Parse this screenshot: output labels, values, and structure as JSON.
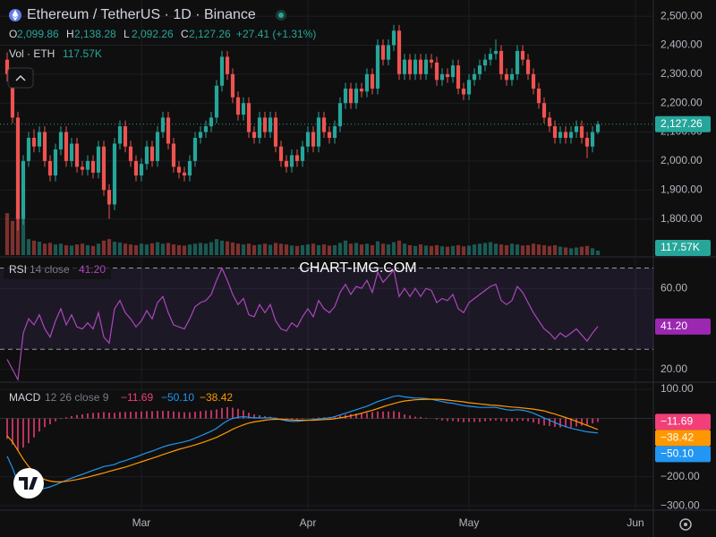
{
  "chart_data": {
    "type": "candlestick",
    "title": "Ethereum / TetherUS · 1D · Binance",
    "ohlc_header": [
      [
        "O",
        "2,099.86"
      ],
      [
        "H",
        "2,138.28"
      ],
      [
        "L",
        "2,092.26"
      ],
      [
        "C",
        "2,127.26"
      ]
    ],
    "change": "+27.41 (+1.31%)",
    "up_color": "#26a69a",
    "down_color": "#ef5350",
    "watermark": "CHART-IMG.COM",
    "xlim": [
      -1.33,
      120.33
    ],
    "xticks": [
      {
        "value": 25,
        "label": "Mar"
      },
      {
        "value": 56,
        "label": "Apr"
      },
      {
        "value": 86,
        "label": "May"
      },
      {
        "value": 117,
        "label": "Jun"
      }
    ],
    "ylim": [
      1669,
      2556
    ],
    "yticks": [
      {
        "value": 1800,
        "label": "1,800.00"
      },
      {
        "value": 1900,
        "label": "1,900.00"
      },
      {
        "value": 2000,
        "label": "2,000.00"
      },
      {
        "value": 2100,
        "label": "2,100.00"
      },
      {
        "value": 2200,
        "label": "2,200.00"
      },
      {
        "value": 2300,
        "label": "2,300.00"
      },
      {
        "value": 2400,
        "label": "2,400.00"
      },
      {
        "value": 2500,
        "label": "2,500.00"
      }
    ],
    "last_label": "2,127.26",
    "candles": [
      [
        2350,
        2375,
        2275,
        2300
      ],
      [
        2300,
        2320,
        2130,
        2150
      ],
      [
        2150,
        2170,
        1760,
        1800
      ],
      [
        1800,
        2020,
        1780,
        2000
      ],
      [
        2000,
        2100,
        1980,
        2080
      ],
      [
        2080,
        2110,
        2030,
        2050
      ],
      [
        2050,
        2120,
        2030,
        2100
      ],
      [
        2100,
        2120,
        1980,
        2000
      ],
      [
        2000,
        2020,
        1930,
        1950
      ],
      [
        1950,
        2060,
        1930,
        2040
      ],
      [
        2040,
        2120,
        2020,
        2100
      ],
      [
        2100,
        2120,
        1980,
        2000
      ],
      [
        2000,
        2080,
        1980,
        2060
      ],
      [
        2060,
        2080,
        1960,
        1980
      ],
      [
        1980,
        2000,
        1950,
        1970
      ],
      [
        1970,
        2020,
        1950,
        2000
      ],
      [
        2000,
        2020,
        1940,
        1960
      ],
      [
        1960,
        2070,
        1940,
        2050
      ],
      [
        2050,
        2070,
        1880,
        1900
      ],
      [
        1900,
        1920,
        1800,
        1850
      ],
      [
        1850,
        2080,
        1830,
        2060
      ],
      [
        2060,
        2140,
        2040,
        2120
      ],
      [
        2120,
        2140,
        2030,
        2050
      ],
      [
        2050,
        2070,
        1980,
        2000
      ],
      [
        2000,
        2020,
        1930,
        1950
      ],
      [
        1950,
        2010,
        1930,
        1990
      ],
      [
        1990,
        2070,
        1970,
        2050
      ],
      [
        2050,
        2070,
        1980,
        2000
      ],
      [
        2000,
        2120,
        1980,
        2100
      ],
      [
        2100,
        2170,
        2080,
        2150
      ],
      [
        2150,
        2170,
        2040,
        2060
      ],
      [
        2060,
        2080,
        1960,
        1980
      ],
      [
        1980,
        2000,
        1940,
        1960
      ],
      [
        1960,
        1980,
        1930,
        1950
      ],
      [
        1950,
        2020,
        1930,
        2000
      ],
      [
        2000,
        2100,
        1980,
        2080
      ],
      [
        2080,
        2120,
        2060,
        2100
      ],
      [
        2100,
        2140,
        2080,
        2120
      ],
      [
        2120,
        2170,
        2100,
        2150
      ],
      [
        2150,
        2280,
        2130,
        2260
      ],
      [
        2260,
        2380,
        2240,
        2360
      ],
      [
        2360,
        2380,
        2280,
        2300
      ],
      [
        2300,
        2320,
        2200,
        2220
      ],
      [
        2220,
        2240,
        2140,
        2160
      ],
      [
        2160,
        2220,
        2140,
        2200
      ],
      [
        2200,
        2220,
        2080,
        2100
      ],
      [
        2100,
        2120,
        2060,
        2080
      ],
      [
        2080,
        2170,
        2060,
        2150
      ],
      [
        2150,
        2170,
        2080,
        2100
      ],
      [
        2100,
        2170,
        2080,
        2150
      ],
      [
        2150,
        2170,
        2030,
        2050
      ],
      [
        2050,
        2070,
        1980,
        2000
      ],
      [
        2000,
        2020,
        1960,
        1980
      ],
      [
        1980,
        2040,
        1960,
        2020
      ],
      [
        2020,
        2040,
        1980,
        2000
      ],
      [
        2000,
        2070,
        1980,
        2050
      ],
      [
        2050,
        2120,
        2030,
        2100
      ],
      [
        2100,
        2120,
        2030,
        2050
      ],
      [
        2050,
        2170,
        2030,
        2150
      ],
      [
        2150,
        2170,
        2080,
        2100
      ],
      [
        2100,
        2120,
        2060,
        2080
      ],
      [
        2080,
        2140,
        2060,
        2120
      ],
      [
        2120,
        2220,
        2100,
        2200
      ],
      [
        2200,
        2270,
        2180,
        2250
      ],
      [
        2250,
        2270,
        2180,
        2200
      ],
      [
        2200,
        2270,
        2180,
        2250
      ],
      [
        2250,
        2270,
        2220,
        2240
      ],
      [
        2240,
        2320,
        2220,
        2300
      ],
      [
        2300,
        2320,
        2230,
        2250
      ],
      [
        2250,
        2420,
        2230,
        2400
      ],
      [
        2400,
        2420,
        2330,
        2350
      ],
      [
        2350,
        2420,
        2330,
        2400
      ],
      [
        2400,
        2470,
        2380,
        2450
      ],
      [
        2450,
        2470,
        2280,
        2300
      ],
      [
        2300,
        2370,
        2280,
        2350
      ],
      [
        2350,
        2370,
        2280,
        2300
      ],
      [
        2300,
        2370,
        2280,
        2350
      ],
      [
        2350,
        2370,
        2280,
        2300
      ],
      [
        2300,
        2370,
        2280,
        2350
      ],
      [
        2350,
        2370,
        2320,
        2340
      ],
      [
        2340,
        2360,
        2260,
        2280
      ],
      [
        2280,
        2320,
        2260,
        2300
      ],
      [
        2300,
        2320,
        2270,
        2290
      ],
      [
        2290,
        2350,
        2270,
        2330
      ],
      [
        2330,
        2350,
        2230,
        2250
      ],
      [
        2250,
        2270,
        2210,
        2230
      ],
      [
        2230,
        2300,
        2210,
        2280
      ],
      [
        2280,
        2320,
        2260,
        2300
      ],
      [
        2300,
        2350,
        2280,
        2330
      ],
      [
        2330,
        2370,
        2310,
        2350
      ],
      [
        2350,
        2390,
        2330,
        2370
      ],
      [
        2370,
        2420,
        2350,
        2380
      ],
      [
        2380,
        2400,
        2280,
        2300
      ],
      [
        2300,
        2320,
        2260,
        2280
      ],
      [
        2280,
        2320,
        2260,
        2300
      ],
      [
        2300,
        2400,
        2280,
        2380
      ],
      [
        2380,
        2400,
        2330,
        2350
      ],
      [
        2350,
        2370,
        2280,
        2300
      ],
      [
        2300,
        2320,
        2230,
        2250
      ],
      [
        2250,
        2270,
        2180,
        2200
      ],
      [
        2200,
        2220,
        2130,
        2150
      ],
      [
        2150,
        2170,
        2100,
        2120
      ],
      [
        2120,
        2140,
        2060,
        2080
      ],
      [
        2080,
        2120,
        2060,
        2100
      ],
      [
        2100,
        2120,
        2060,
        2080
      ],
      [
        2080,
        2120,
        2060,
        2100
      ],
      [
        2100,
        2140,
        2080,
        2120
      ],
      [
        2120,
        2140,
        2060,
        2080
      ],
      [
        2080,
        2100,
        2010,
        2050
      ],
      [
        2050,
        2120,
        2030,
        2099.86
      ],
      [
        2099.86,
        2138.28,
        2092.26,
        2127.26
      ]
    ],
    "volume": {
      "label": "Vol · ETH",
      "value_label": "117.57K",
      "ylim": [
        0,
        6700000
      ],
      "values": [
        1100000,
        900000,
        1130000,
        950000,
        420000,
        380000,
        350000,
        300000,
        320000,
        280000,
        300000,
        260000,
        250000,
        280000,
        300000,
        260000,
        240000,
        300000,
        380000,
        420000,
        350000,
        330000,
        300000,
        280000,
        260000,
        300000,
        280000,
        310000,
        340000,
        300000,
        320000,
        280000,
        260000,
        250000,
        280000,
        300000,
        320000,
        300000,
        340000,
        420000,
        380000,
        360000,
        330000,
        300000,
        280000,
        300000,
        260000,
        280000,
        300000,
        270000,
        320000,
        300000,
        280000,
        250000,
        240000,
        260000,
        280000,
        300000,
        260000,
        280000,
        250000,
        260000,
        320000,
        380000,
        300000,
        320000,
        280000,
        300000,
        260000,
        360000,
        300000,
        280000,
        340000,
        380000,
        300000,
        260000,
        240000,
        280000,
        250000,
        240000,
        260000,
        230000,
        220000,
        240000,
        260000,
        230000,
        250000,
        280000,
        300000,
        320000,
        340000,
        300000,
        280000,
        260000,
        300000,
        280000,
        250000,
        260000,
        300000,
        280000,
        260000,
        240000,
        260000,
        220000,
        200000,
        180000,
        200000,
        220000,
        240000,
        180000,
        117570
      ]
    },
    "rsi": {
      "label": "RSI",
      "params": "14 close",
      "value_label": "41.20",
      "color": "#ab47bc",
      "band": [
        30,
        70
      ],
      "ylim": [
        14.2,
        75.1
      ],
      "yticks": [
        {
          "value": 60,
          "label": "60.00"
        },
        {
          "value": 20,
          "label": "20.00"
        }
      ],
      "values": [
        25,
        20,
        15,
        38,
        45,
        42,
        47,
        40,
        36,
        44,
        50,
        42,
        47,
        41,
        40,
        43,
        40,
        48,
        36,
        33,
        50,
        54,
        48,
        45,
        41,
        44,
        49,
        45,
        53,
        56,
        48,
        42,
        41,
        40,
        45,
        51,
        53,
        54,
        57,
        64,
        70,
        64,
        57,
        52,
        55,
        47,
        46,
        52,
        48,
        52,
        44,
        40,
        39,
        43,
        41,
        46,
        50,
        46,
        54,
        50,
        48,
        51,
        58,
        62,
        57,
        61,
        60,
        64,
        58,
        68,
        63,
        66,
        69,
        56,
        60,
        56,
        60,
        56,
        60,
        59,
        53,
        55,
        54,
        57,
        50,
        48,
        53,
        55,
        57,
        59,
        61,
        62,
        54,
        52,
        54,
        61,
        58,
        53,
        48,
        44,
        40,
        38,
        35,
        38,
        36,
        38,
        40,
        37,
        34,
        38,
        41.2
      ]
    },
    "macd": {
      "label": "MACD",
      "params": "12 26 close 9",
      "ylim": [
        -315,
        121.5
      ],
      "yticks": [
        {
          "value": 100,
          "label": "100.00"
        },
        {
          "value": -200,
          "label": "−200.00"
        },
        {
          "value": -300,
          "label": "−300.00"
        }
      ],
      "histogram": {
        "color": "#f23f7a",
        "value_label": "−11.69",
        "values": [
          -70,
          -90,
          -110,
          -100,
          -85,
          -65,
          -45,
          -30,
          -20,
          -10,
          -2,
          4,
          8,
          12,
          14,
          17,
          19,
          20,
          22,
          20,
          19,
          22,
          22,
          23,
          23,
          24,
          25,
          25,
          26,
          26,
          26,
          24,
          22,
          21,
          21,
          23,
          25,
          27,
          28,
          31,
          36,
          39,
          37,
          33,
          28,
          20,
          14,
          11,
          8,
          6,
          3,
          -1,
          -4,
          -5,
          -4,
          -2,
          0,
          2,
          3,
          4,
          5,
          7,
          10,
          13,
          15,
          17,
          18,
          19,
          22,
          24,
          24,
          24,
          25,
          22,
          14,
          10,
          6,
          5,
          2,
          0,
          -4,
          -7,
          -9,
          -9,
          -11,
          -13,
          -12,
          -12,
          -12,
          -10,
          -8,
          -7,
          -9,
          -11,
          -11,
          -8,
          -8,
          -10,
          -14,
          -19,
          -24,
          -26,
          -29,
          -31,
          -31,
          -31,
          -28,
          -25,
          -22,
          -17,
          -11.69
        ]
      },
      "macd": {
        "color": "#2196f3",
        "value_label": "−50.10",
        "values": [
          -130,
          -170,
          -220,
          -240,
          -250,
          -250,
          -245,
          -240,
          -235,
          -228,
          -220,
          -212,
          -205,
          -198,
          -192,
          -185,
          -178,
          -172,
          -165,
          -162,
          -158,
          -150,
          -145,
          -138,
          -132,
          -125,
          -118,
          -112,
          -105,
          -98,
          -92,
          -88,
          -84,
          -80,
          -75,
          -68,
          -60,
          -52,
          -44,
          -34,
          -20,
          -8,
          0,
          4,
          6,
          4,
          2,
          2,
          2,
          2,
          0,
          -4,
          -8,
          -10,
          -10,
          -8,
          -6,
          -4,
          -2,
          0,
          2,
          6,
          12,
          18,
          24,
          30,
          36,
          42,
          50,
          58,
          64,
          70,
          76,
          78,
          74,
          72,
          70,
          70,
          68,
          66,
          62,
          58,
          54,
          52,
          48,
          44,
          42,
          40,
          38,
          38,
          38,
          38,
          34,
          30,
          28,
          30,
          28,
          24,
          18,
          10,
          2,
          -6,
          -14,
          -22,
          -28,
          -34,
          -38,
          -42,
          -46,
          -48,
          -50.1
        ]
      },
      "signal": {
        "color": "#ff9800",
        "value_label": "−38.42",
        "values": [
          -60,
          -80,
          -110,
          -140,
          -165,
          -185,
          -200,
          -210,
          -215,
          -218,
          -218,
          -216,
          -213,
          -210,
          -206,
          -202,
          -197,
          -192,
          -187,
          -182,
          -177,
          -172,
          -167,
          -161,
          -155,
          -149,
          -143,
          -137,
          -131,
          -124,
          -118,
          -112,
          -106,
          -101,
          -96,
          -91,
          -85,
          -79,
          -72,
          -65,
          -56,
          -47,
          -37,
          -29,
          -22,
          -16,
          -12,
          -9,
          -6,
          -4,
          -3,
          -3,
          -4,
          -5,
          -6,
          -6,
          -6,
          -6,
          -5,
          -4,
          -3,
          -1,
          2,
          5,
          9,
          13,
          18,
          23,
          28,
          34,
          40,
          46,
          51,
          56,
          60,
          62,
          64,
          65,
          66,
          66,
          66,
          65,
          63,
          61,
          59,
          57,
          54,
          52,
          50,
          48,
          46,
          45,
          43,
          41,
          39,
          38,
          36,
          34,
          32,
          29,
          26,
          20,
          15,
          9,
          3,
          -3,
          -10,
          -17,
          -24,
          -31,
          -38.42
        ]
      }
    }
  }
}
